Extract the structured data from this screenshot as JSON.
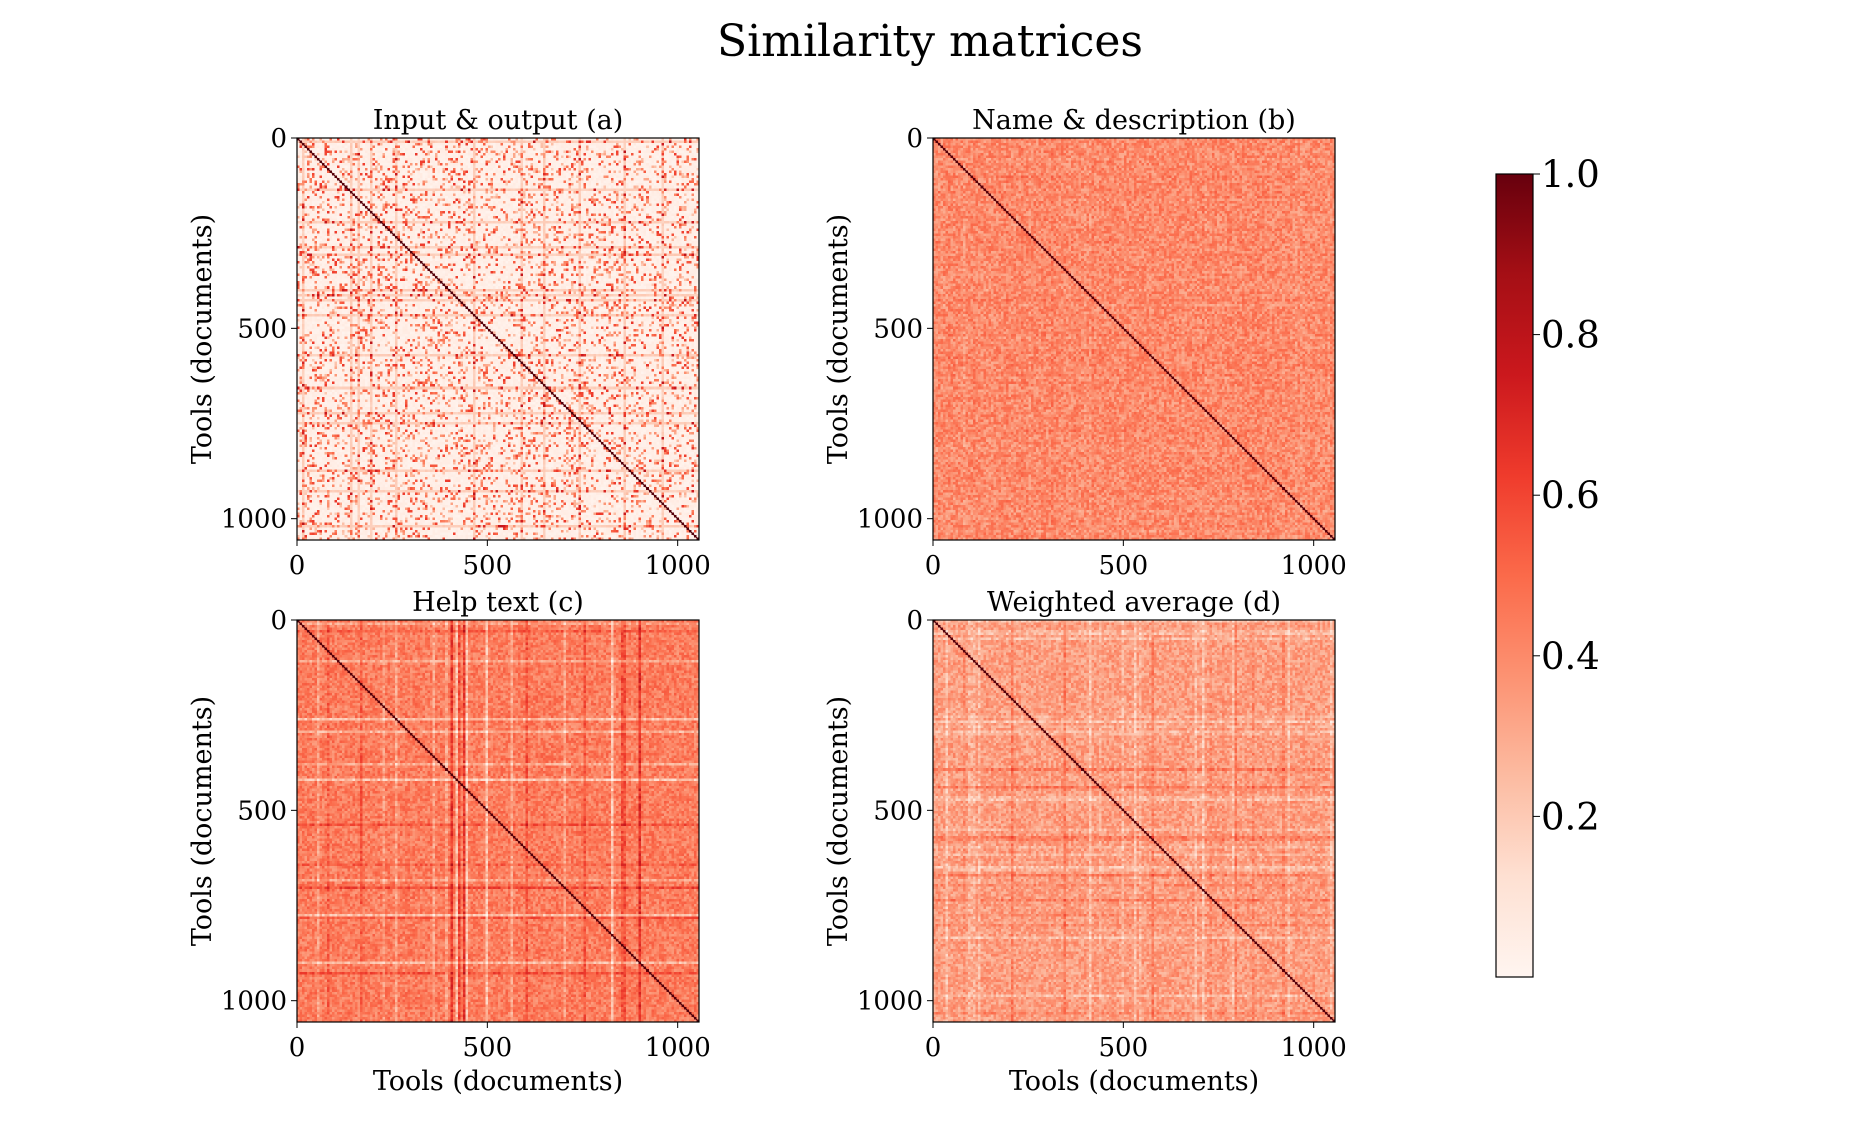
{
  "figure": {
    "suptitle": "Similarity matrices"
  },
  "chart_data": [
    {
      "type": "heatmap",
      "title": "Input & output (a)",
      "xlabel": "",
      "ylabel": "Tools (documents)",
      "n": 1056,
      "xlim": [
        0,
        1056
      ],
      "ylim": [
        1056,
        0
      ],
      "xticks": [
        0,
        500,
        1000
      ],
      "yticks": [
        0,
        500,
        1000
      ],
      "diagonal_value": 1.0,
      "base_value": 0.06,
      "noise_amplitude": 0.55,
      "line_contrast": 0.55,
      "color": "#fff2ec",
      "seed": 11
    },
    {
      "type": "heatmap",
      "title": "Name & description (b)",
      "xlabel": "",
      "ylabel": "Tools (documents)",
      "n": 1056,
      "xlim": [
        0,
        1056
      ],
      "ylim": [
        1056,
        0
      ],
      "xticks": [
        0,
        500,
        1000
      ],
      "yticks": [
        0,
        500,
        1000
      ],
      "diagonal_value": 1.0,
      "base_value": 0.4,
      "noise_amplitude": 0.22,
      "line_contrast": 0.04,
      "color": "#f6876b",
      "seed": 23
    },
    {
      "type": "heatmap",
      "title": "Help text (c)",
      "xlabel": "Tools (documents)",
      "ylabel": "Tools (documents)",
      "n": 1056,
      "xlim": [
        0,
        1056
      ],
      "ylim": [
        1056,
        0
      ],
      "xticks": [
        0,
        500,
        1000
      ],
      "yticks": [
        0,
        500,
        1000
      ],
      "diagonal_value": 1.0,
      "base_value": 0.44,
      "noise_amplitude": 0.2,
      "line_contrast": 0.3,
      "color": "#f4704f",
      "seed": 37
    },
    {
      "type": "heatmap",
      "title": "Weighted average (d)",
      "xlabel": "Tools (documents)",
      "ylabel": "Tools (documents)",
      "n": 1056,
      "xlim": [
        0,
        1056
      ],
      "ylim": [
        1056,
        0
      ],
      "xticks": [
        0,
        500,
        1000
      ],
      "yticks": [
        0,
        500,
        1000
      ],
      "diagonal_value": 1.0,
      "base_value": 0.34,
      "noise_amplitude": 0.2,
      "line_contrast": 0.16,
      "color": "#f89a7e",
      "seed": 53
    }
  ],
  "colorbar": {
    "colormap": "Reds",
    "range": [
      0.0,
      1.0
    ],
    "ticks": [
      "0.2",
      "0.4",
      "0.6",
      "0.8",
      "1.0"
    ],
    "tick_values": [
      0.2,
      0.4,
      0.6,
      0.8,
      1.0
    ],
    "colors": [
      "#fff5f0",
      "#fee0d2",
      "#fcbba1",
      "#fc9272",
      "#fb6a4a",
      "#ef3b2c",
      "#cb181d",
      "#a50f15",
      "#67000d"
    ]
  }
}
